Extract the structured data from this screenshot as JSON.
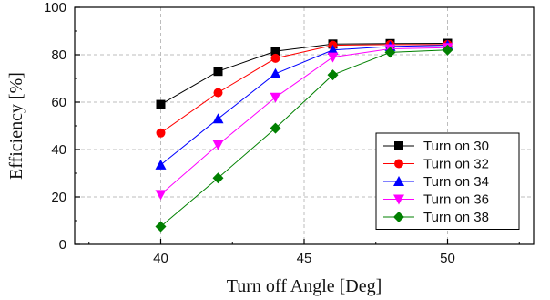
{
  "chart_data": {
    "type": "line",
    "title": "",
    "xlabel": "Turn off Angle [Deg]",
    "ylabel": "Efficiency [%]",
    "xlim": [
      37,
      53
    ],
    "ylim": [
      0,
      100
    ],
    "x_ticks": [
      40,
      45,
      50
    ],
    "y_ticks": [
      0,
      20,
      40,
      60,
      80,
      100
    ],
    "grid": true,
    "legend_position": "lower-right",
    "series": [
      {
        "name": "Turn on 30",
        "color": "#000000",
        "marker": "square",
        "x": [
          40,
          42,
          44,
          46,
          48,
          50
        ],
        "values": [
          59,
          73,
          81.5,
          84.5,
          84.7,
          84.8
        ]
      },
      {
        "name": "Turn on 32",
        "color": "#ff0000",
        "marker": "circle",
        "x": [
          40,
          42,
          44,
          46,
          48,
          50
        ],
        "values": [
          47,
          64,
          78.5,
          84,
          84.3,
          84.3
        ]
      },
      {
        "name": "Turn on 34",
        "color": "#0000ff",
        "marker": "triangle-up",
        "x": [
          40,
          42,
          44,
          46,
          48,
          50
        ],
        "values": [
          33.5,
          53,
          72,
          82,
          83.5,
          84
        ]
      },
      {
        "name": "Turn on 36",
        "color": "#ff00ff",
        "marker": "triangle-down",
        "x": [
          40,
          42,
          44,
          46,
          48,
          50
        ],
        "values": [
          21,
          42,
          62,
          79,
          82.5,
          83
        ]
      },
      {
        "name": "Turn on 38",
        "color": "#008000",
        "marker": "diamond",
        "x": [
          40,
          42,
          44,
          46,
          48,
          50
        ],
        "values": [
          7.5,
          28,
          49,
          71.5,
          81,
          82
        ]
      }
    ]
  }
}
